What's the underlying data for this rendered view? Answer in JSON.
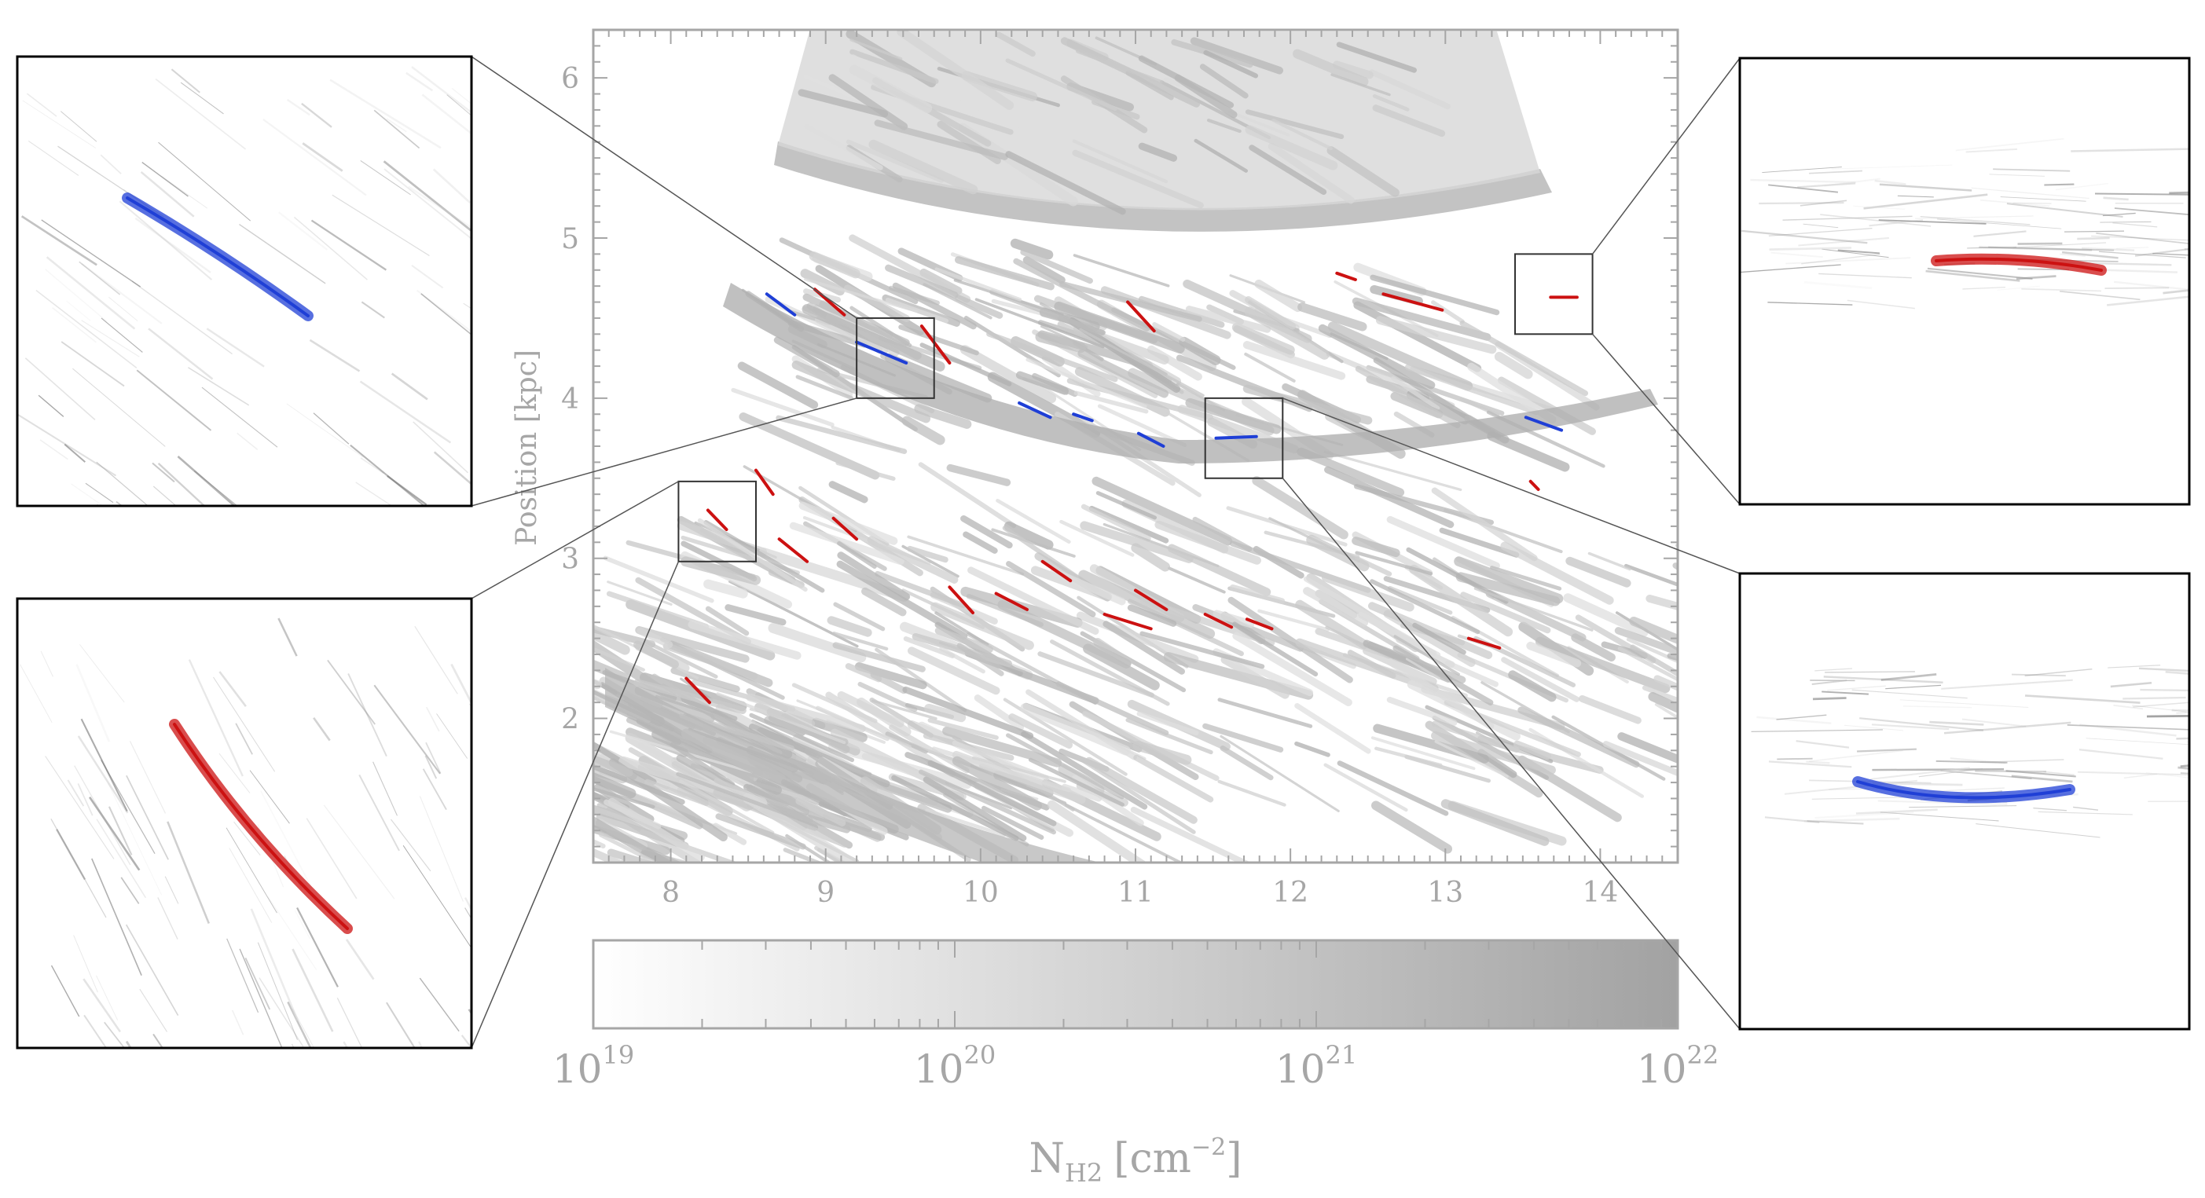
{
  "colors": {
    "axis": "#a6a6a6",
    "gas": "#c8c8c8",
    "red_filament": "#cc1111",
    "blue_filament": "#1f3fd6",
    "zoom_frame": "#000000"
  },
  "chart_data": {
    "type": "heatmap",
    "title": "",
    "xlabel": "",
    "ylabel": "Position [kpc]",
    "xlim": [
      7.5,
      14.5
    ],
    "ylim": [
      1.1,
      6.3
    ],
    "xticks": [
      "8",
      "9",
      "10",
      "11",
      "12",
      "13",
      "14"
    ],
    "yticks": [
      "2",
      "3",
      "4",
      "5",
      "6"
    ],
    "colorbar": {
      "label_main": "N",
      "label_sub": "H2",
      "label_unit": "[cm",
      "label_exp": "−2",
      "label_end": "]",
      "range": [
        19,
        22
      ],
      "scale": "log",
      "ticks": [
        {
          "base": "10",
          "exp": "19"
        },
        {
          "base": "10",
          "exp": "20"
        },
        {
          "base": "10",
          "exp": "21"
        },
        {
          "base": "10",
          "exp": "22"
        }
      ]
    },
    "series": [
      {
        "color": "red",
        "segments": [
          [
            [
              8.93,
              4.68
            ],
            [
              9.12,
              4.52
            ]
          ],
          [
            [
              9.62,
              4.45
            ],
            [
              9.8,
              4.22
            ]
          ],
          [
            [
              10.95,
              4.6
            ],
            [
              11.12,
              4.42
            ]
          ],
          [
            [
              12.3,
              4.78
            ],
            [
              12.42,
              4.74
            ]
          ],
          [
            [
              12.6,
              4.65
            ],
            [
              12.98,
              4.55
            ]
          ],
          [
            [
              13.68,
              4.63
            ],
            [
              13.85,
              4.63
            ]
          ],
          [
            [
              8.55,
              3.55
            ],
            [
              8.66,
              3.4
            ]
          ],
          [
            [
              8.24,
              3.3
            ],
            [
              8.36,
              3.18
            ]
          ],
          [
            [
              8.7,
              3.12
            ],
            [
              8.88,
              2.98
            ]
          ],
          [
            [
              9.05,
              3.25
            ],
            [
              9.2,
              3.12
            ]
          ],
          [
            [
              9.8,
              2.82
            ],
            [
              9.95,
              2.66
            ]
          ],
          [
            [
              10.1,
              2.78
            ],
            [
              10.3,
              2.68
            ]
          ],
          [
            [
              10.4,
              2.98
            ],
            [
              10.58,
              2.86
            ]
          ],
          [
            [
              10.8,
              2.65
            ],
            [
              11.1,
              2.56
            ]
          ],
          [
            [
              11.0,
              2.8
            ],
            [
              11.2,
              2.68
            ]
          ],
          [
            [
              11.45,
              2.65
            ],
            [
              11.62,
              2.57
            ]
          ],
          [
            [
              11.72,
              2.62
            ],
            [
              11.88,
              2.56
            ]
          ],
          [
            [
              13.15,
              2.5
            ],
            [
              13.35,
              2.44
            ]
          ],
          [
            [
              13.55,
              3.48
            ],
            [
              13.6,
              3.43
            ]
          ],
          [
            [
              8.1,
              2.25
            ],
            [
              8.25,
              2.1
            ]
          ]
        ]
      },
      {
        "color": "blue",
        "segments": [
          [
            [
              8.62,
              4.65
            ],
            [
              8.8,
              4.52
            ]
          ],
          [
            [
              9.2,
              4.35
            ],
            [
              9.52,
              4.22
            ]
          ],
          [
            [
              10.25,
              3.97
            ],
            [
              10.45,
              3.88
            ]
          ],
          [
            [
              10.6,
              3.9
            ],
            [
              10.72,
              3.86
            ]
          ],
          [
            [
              11.02,
              3.78
            ],
            [
              11.18,
              3.7
            ]
          ],
          [
            [
              11.52,
              3.75
            ],
            [
              11.78,
              3.76
            ]
          ],
          [
            [
              13.52,
              3.88
            ],
            [
              13.75,
              3.8
            ]
          ]
        ]
      }
    ],
    "zoom_boxes": [
      {
        "x": [
          9.2,
          9.7
        ],
        "y": [
          4.0,
          4.5
        ],
        "filament": "blue"
      },
      {
        "x": [
          8.05,
          8.55
        ],
        "y": [
          2.98,
          3.48
        ],
        "filament": "red"
      },
      {
        "x": [
          13.45,
          13.95
        ],
        "y": [
          4.4,
          4.9
        ],
        "filament": "red"
      },
      {
        "x": [
          11.45,
          11.95
        ],
        "y": [
          3.5,
          4.0
        ],
        "filament": "blue"
      }
    ]
  }
}
